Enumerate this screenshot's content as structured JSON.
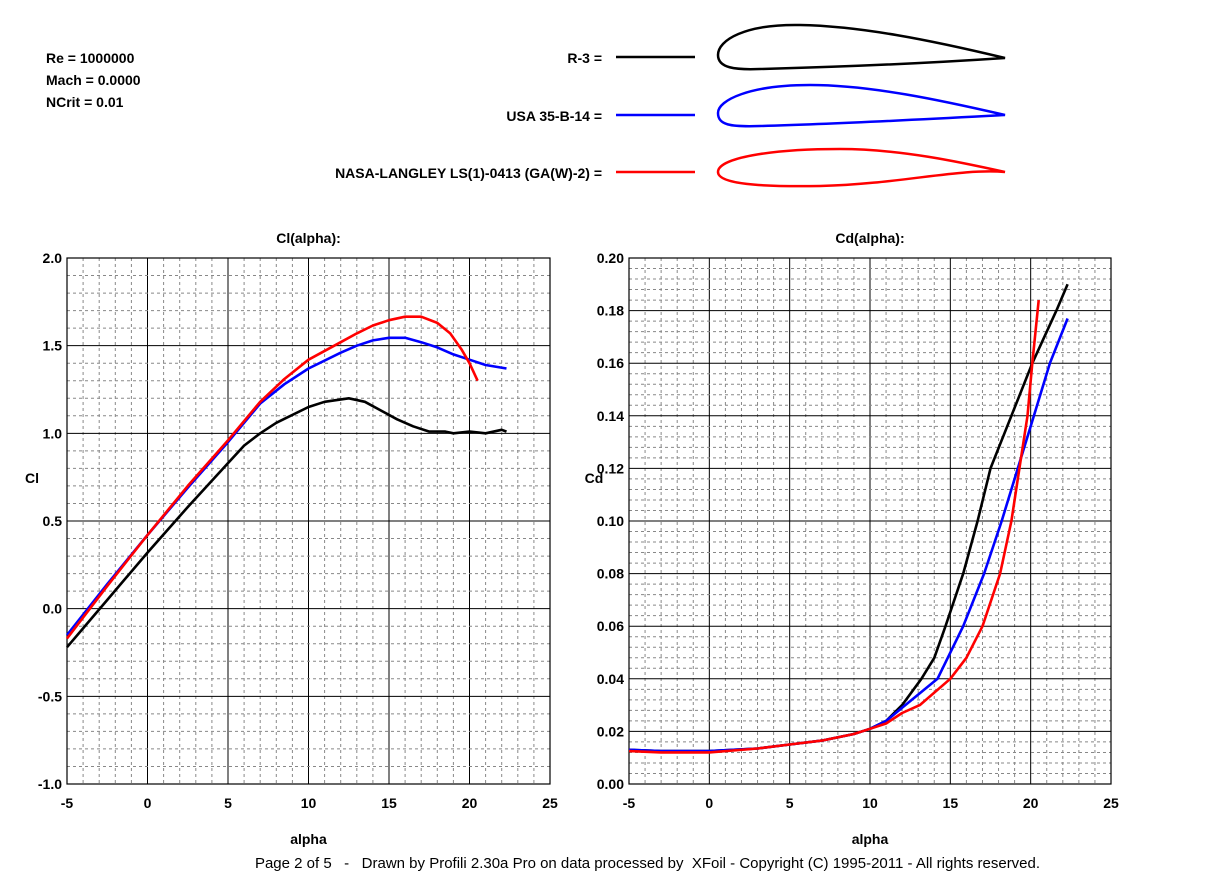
{
  "conditions": {
    "re": "Re = 1000000",
    "mach": "Mach = 0.0000",
    "ncrit": "NCrit = 0.01"
  },
  "legend": [
    {
      "label": "R-3 =",
      "color": "#000000"
    },
    {
      "label": "USA 35-B-14 =",
      "color": "#0000ff"
    },
    {
      "label": "NASA-LANGLEY LS(1)-0413 (GA(W)-2) =",
      "color": "#ff0000"
    }
  ],
  "footer": "Page 2 of 5   -   Drawn by Profili 2.30a Pro on data processed by  XFoil - Copyright (C) 1995-2011 - All rights reserved.",
  "chart_data": [
    {
      "type": "line",
      "title": "Cl(alpha):",
      "xlabel": "alpha",
      "ylabel": "Cl",
      "xlim": [
        -5,
        25
      ],
      "ylim": [
        -1.0,
        2.0
      ],
      "xticks": [
        "-5",
        "0",
        "5",
        "10",
        "15",
        "20",
        "25"
      ],
      "yticks": [
        "-1.0",
        "-0.5",
        "0.0",
        "0.5",
        "1.0",
        "1.5",
        "2.0"
      ],
      "grid": true,
      "series": [
        {
          "name": "R-3",
          "color": "#000000",
          "points": [
            [
              -5,
              -0.22
            ],
            [
              -2.5,
              0.05
            ],
            [
              0,
              0.32
            ],
            [
              2.5,
              0.58
            ],
            [
              5,
              0.83
            ],
            [
              6,
              0.93
            ],
            [
              7,
              1.0
            ],
            [
              8,
              1.06
            ],
            [
              10,
              1.15
            ],
            [
              11,
              1.18
            ],
            [
              12.5,
              1.2
            ],
            [
              13.5,
              1.18
            ],
            [
              14.5,
              1.13
            ],
            [
              15.5,
              1.08
            ],
            [
              16.5,
              1.04
            ],
            [
              17.5,
              1.01
            ],
            [
              18.5,
              1.01
            ],
            [
              19,
              1.0
            ],
            [
              20,
              1.01
            ],
            [
              21,
              1.0
            ],
            [
              22,
              1.02
            ],
            [
              22.3,
              1.01
            ]
          ]
        },
        {
          "name": "USA 35-B-14",
          "color": "#0000ff",
          "points": [
            [
              -5,
              -0.15
            ],
            [
              -2.5,
              0.14
            ],
            [
              0,
              0.42
            ],
            [
              2.5,
              0.69
            ],
            [
              5,
              0.95
            ],
            [
              7,
              1.17
            ],
            [
              8.5,
              1.28
            ],
            [
              10,
              1.37
            ],
            [
              12,
              1.46
            ],
            [
              13,
              1.5
            ],
            [
              14,
              1.53
            ],
            [
              15,
              1.545
            ],
            [
              16,
              1.545
            ],
            [
              17,
              1.52
            ],
            [
              18,
              1.49
            ],
            [
              19,
              1.45
            ],
            [
              20,
              1.42
            ],
            [
              21,
              1.39
            ],
            [
              22.3,
              1.37
            ]
          ]
        },
        {
          "name": "NASA-LANGLEY LS(1)-0413 (GA(W)-2)",
          "color": "#ff0000",
          "points": [
            [
              -5,
              -0.17
            ],
            [
              -2.5,
              0.13
            ],
            [
              0,
              0.42
            ],
            [
              2.5,
              0.7
            ],
            [
              5,
              0.96
            ],
            [
              7,
              1.18
            ],
            [
              8.5,
              1.31
            ],
            [
              10,
              1.42
            ],
            [
              12,
              1.52
            ],
            [
              13,
              1.57
            ],
            [
              14,
              1.615
            ],
            [
              15,
              1.645
            ],
            [
              16,
              1.665
            ],
            [
              17,
              1.665
            ],
            [
              18,
              1.63
            ],
            [
              18.8,
              1.57
            ],
            [
              19.5,
              1.48
            ],
            [
              20,
              1.4
            ],
            [
              20.5,
              1.3
            ]
          ]
        }
      ]
    },
    {
      "type": "line",
      "title": "Cd(alpha):",
      "xlabel": "alpha",
      "ylabel": "Cd",
      "xlim": [
        -5,
        25
      ],
      "ylim": [
        0.0,
        0.2
      ],
      "xticks": [
        "-5",
        "0",
        "5",
        "10",
        "15",
        "20",
        "25"
      ],
      "yticks": [
        "0.00",
        "0.02",
        "0.04",
        "0.06",
        "0.08",
        "0.10",
        "0.12",
        "0.14",
        "0.16",
        "0.18",
        "0.20"
      ],
      "grid": true,
      "series": [
        {
          "name": "R-3",
          "color": "#000000",
          "points": [
            [
              -5,
              0.013
            ],
            [
              -3,
              0.0125
            ],
            [
              0,
              0.0125
            ],
            [
              3,
              0.0135
            ],
            [
              5,
              0.015
            ],
            [
              7,
              0.0165
            ],
            [
              9,
              0.019
            ],
            [
              10,
              0.021
            ],
            [
              11,
              0.024
            ],
            [
              12,
              0.03
            ],
            [
              13.2,
              0.04
            ],
            [
              14,
              0.048
            ],
            [
              14.7,
              0.06
            ],
            [
              15.8,
              0.08
            ],
            [
              16.7,
              0.1
            ],
            [
              17.5,
              0.12
            ],
            [
              18.8,
              0.14
            ],
            [
              20.1,
              0.16
            ],
            [
              21.6,
              0.18
            ],
            [
              22.3,
              0.19
            ]
          ]
        },
        {
          "name": "USA 35-B-14",
          "color": "#0000ff",
          "points": [
            [
              -5,
              0.013
            ],
            [
              -3,
              0.0125
            ],
            [
              0,
              0.0125
            ],
            [
              3,
              0.0135
            ],
            [
              5,
              0.015
            ],
            [
              7,
              0.0165
            ],
            [
              9,
              0.019
            ],
            [
              10,
              0.021
            ],
            [
              11,
              0.024
            ],
            [
              12,
              0.029
            ],
            [
              14.2,
              0.04
            ],
            [
              15.8,
              0.06
            ],
            [
              17.1,
              0.08
            ],
            [
              18.2,
              0.1
            ],
            [
              19.2,
              0.12
            ],
            [
              20.2,
              0.14
            ],
            [
              21.2,
              0.16
            ],
            [
              22.3,
              0.177
            ]
          ]
        },
        {
          "name": "NASA-LANGLEY LS(1)-0413 (GA(W)-2)",
          "color": "#ff0000",
          "points": [
            [
              -5,
              0.0125
            ],
            [
              -3,
              0.012
            ],
            [
              0,
              0.012
            ],
            [
              3,
              0.0135
            ],
            [
              5,
              0.015
            ],
            [
              7,
              0.0165
            ],
            [
              9,
              0.019
            ],
            [
              10,
              0.021
            ],
            [
              11,
              0.023
            ],
            [
              12,
              0.027
            ],
            [
              13.1,
              0.03
            ],
            [
              15,
              0.04
            ],
            [
              16,
              0.048
            ],
            [
              17,
              0.06
            ],
            [
              18.1,
              0.08
            ],
            [
              18.8,
              0.1
            ],
            [
              19.3,
              0.12
            ],
            [
              19.8,
              0.14
            ],
            [
              20.1,
              0.16
            ],
            [
              20.5,
              0.184
            ]
          ]
        }
      ]
    }
  ]
}
